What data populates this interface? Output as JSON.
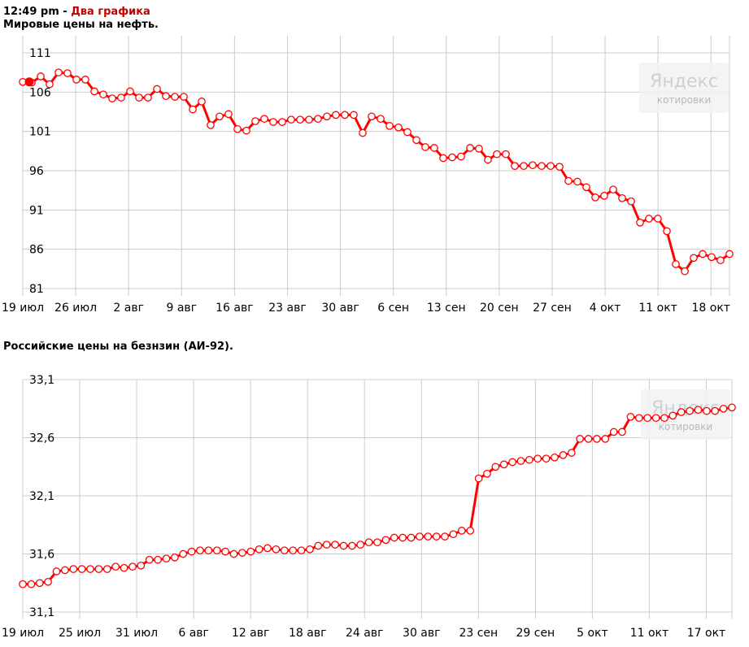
{
  "header": {
    "time": "12:49 pm",
    "separator": " - ",
    "link": "Два графика"
  },
  "watermark": {
    "brand": "Яндекс",
    "sub": "котировки"
  },
  "colors": {
    "series": "#ff0000",
    "grid": "#cccccc",
    "link": "#c00000"
  },
  "chart_data": [
    {
      "type": "line",
      "title": "Мировые цены на нефть.",
      "ylim": [
        81,
        111
      ],
      "yticks": [
        "81",
        "86",
        "91",
        "96",
        "101",
        "106",
        "111"
      ],
      "xticks": [
        "19 июл",
        "26 июл",
        "2 авг",
        "9 авг",
        "16 авг",
        "23 авг",
        "30 авг",
        "6 сен",
        "13 сен",
        "20 сен",
        "27 сен",
        "4 окт",
        "11 окт",
        "18 окт"
      ],
      "grid": true,
      "series": [
        {
          "values": [
            107.3,
            107.2,
            108.0,
            107.0,
            108.5,
            108.4,
            107.6,
            107.6,
            106.1,
            105.7,
            105.2,
            105.3,
            106.1,
            105.3,
            105.3,
            106.4,
            105.5,
            105.4,
            105.4,
            103.8,
            104.8,
            101.8,
            102.9,
            103.2,
            101.3,
            101.1,
            102.3,
            102.6,
            102.2,
            102.2,
            102.5,
            102.5,
            102.5,
            102.6,
            102.9,
            103.1,
            103.1,
            103.1,
            100.8,
            102.9,
            102.6,
            101.7,
            101.5,
            100.9,
            99.9,
            99.0,
            98.9,
            97.6,
            97.7,
            97.8,
            98.9,
            98.8,
            97.4,
            98.1,
            98.1,
            96.6,
            96.6,
            96.7,
            96.6,
            96.6,
            96.5,
            94.7,
            94.6,
            93.9,
            92.6,
            92.8,
            93.6,
            92.5,
            92.1,
            89.4,
            89.9,
            89.9,
            88.3,
            84.1,
            83.2,
            84.9,
            85.4,
            85.0,
            84.6,
            85.4
          ]
        }
      ]
    },
    {
      "type": "line",
      "title": "Российские цены на безнзин (АИ-92).",
      "ylim": [
        31.1,
        33.1
      ],
      "yticks": [
        "31,1",
        "31,6",
        "32,1",
        "32,6",
        "33,1"
      ],
      "xticks": [
        "19 июл",
        "25 июл",
        "31 июл",
        "6 авг",
        "12 авг",
        "18 авг",
        "24 авг",
        "30 авг",
        "23 сен",
        "29 сен",
        "5 окт",
        "11 окт",
        "17 окт"
      ],
      "grid": true,
      "series": [
        {
          "values": [
            31.34,
            31.34,
            31.35,
            31.36,
            31.45,
            31.46,
            31.47,
            31.47,
            31.47,
            31.47,
            31.47,
            31.49,
            31.48,
            31.49,
            31.5,
            31.55,
            31.55,
            31.56,
            31.57,
            31.6,
            31.62,
            31.63,
            31.63,
            31.63,
            31.62,
            31.6,
            31.61,
            31.62,
            31.64,
            31.65,
            31.64,
            31.63,
            31.63,
            31.63,
            31.64,
            31.67,
            31.68,
            31.68,
            31.67,
            31.67,
            31.68,
            31.7,
            31.7,
            31.72,
            31.74,
            31.74,
            31.74,
            31.75,
            31.75,
            31.75,
            31.75,
            31.77,
            31.8,
            31.8,
            32.25,
            32.29,
            32.35,
            32.37,
            32.39,
            32.4,
            32.41,
            32.42,
            32.42,
            32.43,
            32.45,
            32.47,
            32.59,
            32.59,
            32.59,
            32.59,
            32.65,
            32.65,
            32.78,
            32.77,
            32.77,
            32.77,
            32.77,
            32.79,
            32.82,
            32.83,
            32.84,
            32.83,
            32.83,
            32.85,
            32.86
          ]
        }
      ]
    }
  ]
}
